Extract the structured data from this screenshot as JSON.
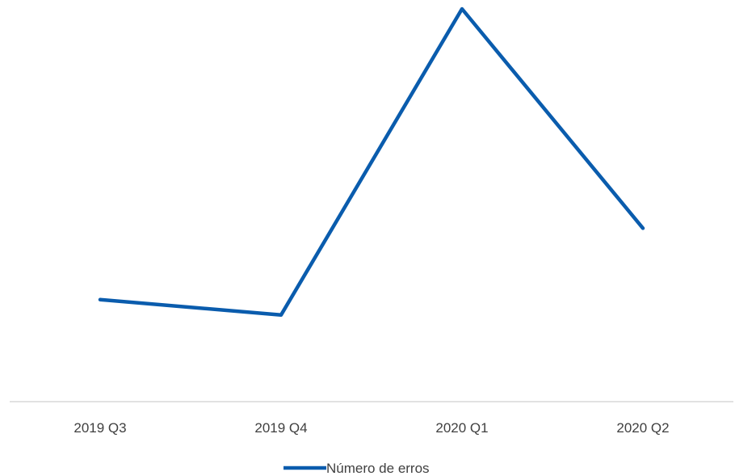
{
  "chart_data": {
    "type": "line",
    "categories": [
      "2019 Q3",
      "2019 Q4",
      "2020 Q1",
      "2020 Q2"
    ],
    "series": [
      {
        "name": "Número de erros",
        "values": [
          13,
          10,
          70,
          27
        ]
      }
    ],
    "ylim": [
      -7,
      70
    ],
    "y_axis_labels_shown": false,
    "grid": false,
    "legend": "bottom",
    "colors": {
      "series": "#0A5CAD",
      "axis": "#D9D9D9",
      "text": "#404040"
    }
  }
}
